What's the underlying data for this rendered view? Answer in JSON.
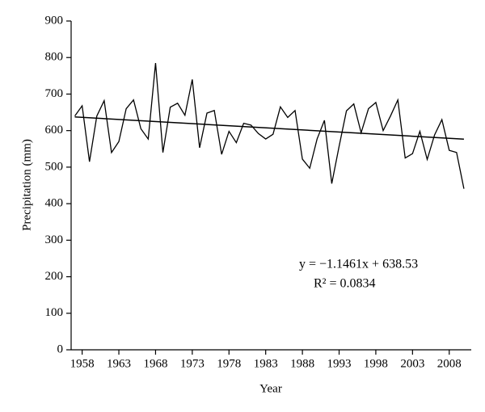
{
  "chart_data": {
    "type": "line",
    "xlabel": "Year",
    "ylabel": "Precipitation (mm)",
    "x": [
      1957,
      1958,
      1959,
      1960,
      1961,
      1962,
      1963,
      1964,
      1965,
      1966,
      1967,
      1968,
      1969,
      1970,
      1971,
      1972,
      1973,
      1974,
      1975,
      1976,
      1977,
      1978,
      1979,
      1980,
      1981,
      1982,
      1983,
      1984,
      1985,
      1986,
      1987,
      1988,
      1989,
      1990,
      1991,
      1992,
      1993,
      1994,
      1995,
      1996,
      1997,
      1998,
      1999,
      2000,
      2001,
      2002,
      2003,
      2004,
      2005,
      2006,
      2007,
      2008,
      2009,
      2010
    ],
    "series": [
      {
        "name": "Precipitation",
        "color": "#000000",
        "values": [
          640,
          668,
          515,
          640,
          682,
          540,
          570,
          660,
          684,
          605,
          577,
          785,
          540,
          664,
          675,
          642,
          740,
          553,
          648,
          655,
          535,
          598,
          567,
          620,
          615,
          592,
          577,
          590,
          665,
          636,
          655,
          522,
          497,
          577,
          628,
          455,
          557,
          654,
          673,
          594,
          660,
          677,
          600,
          640,
          684,
          525,
          537,
          598,
          521,
          588,
          630,
          546,
          540,
          441
        ]
      }
    ],
    "trend": {
      "slope": -1.1461,
      "intercept": 638.53,
      "color": "#000000"
    },
    "annotations": [
      "y = −1.1461x + 638.53",
      "R² = 0.0834"
    ],
    "xlim": [
      1956.5,
      2011
    ],
    "xticks": [
      1958,
      1963,
      1968,
      1973,
      1978,
      1983,
      1988,
      1993,
      1998,
      2003,
      2008
    ],
    "ylim": [
      0,
      900
    ],
    "yticks": [
      0,
      100,
      200,
      300,
      400,
      500,
      600,
      700,
      800,
      900
    ],
    "grid": false
  }
}
